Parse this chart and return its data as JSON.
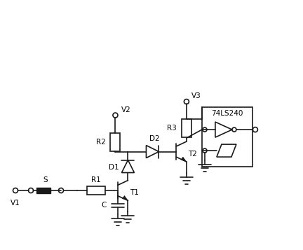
{
  "bg_color": "#ffffff",
  "line_color": "#1a1a1a",
  "lw": 1.2,
  "thin_lw": 0.8,
  "labels": {
    "V1": "V1",
    "V2": "V2",
    "V3": "V3",
    "R1": "R1",
    "R2": "R2",
    "R3": "R3",
    "C": "C",
    "D1": "D1",
    "D2": "D2",
    "T1": "T1",
    "T2": "T2",
    "S": "S",
    "IC": "74LS240"
  },
  "font_size": 7.5
}
